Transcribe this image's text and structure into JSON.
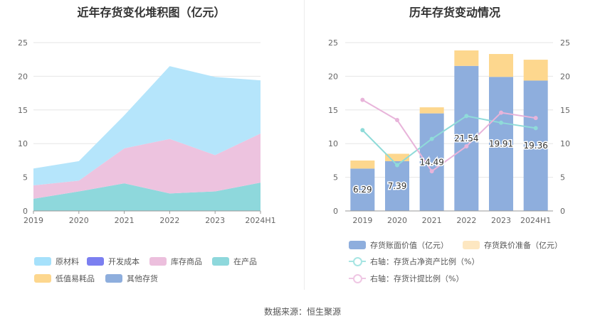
{
  "source_label": "数据来源：恒生聚源",
  "chart_data": [
    {
      "type": "area",
      "stacked": true,
      "title": "近年存货变化堆积图（亿元）",
      "categories": [
        "2019",
        "2020",
        "2021",
        "2022",
        "2023",
        "2024H1"
      ],
      "ylim": [
        0,
        25
      ],
      "yticks": [
        0,
        5,
        10,
        15,
        20,
        25
      ],
      "series": [
        {
          "name": "在产品",
          "color": "#8ed8dc",
          "values": [
            1.8,
            2.9,
            4.1,
            2.6,
            2.9,
            4.2
          ]
        },
        {
          "name": "库存商品",
          "color": "#edc3df",
          "values": [
            2.0,
            1.6,
            5.2,
            8.1,
            5.4,
            7.3
          ]
        },
        {
          "name": "原材料",
          "color": "#b5e5fb",
          "values": [
            2.5,
            2.9,
            4.9,
            10.8,
            11.6,
            7.9
          ]
        },
        {
          "name": "开发成本",
          "color": "#7b7ff0",
          "values": [
            0,
            0,
            0,
            0,
            0,
            0
          ]
        },
        {
          "name": "低值易耗品",
          "color": "#fdd78e",
          "values": [
            0,
            0,
            0,
            0,
            0,
            0
          ]
        },
        {
          "name": "其他存货",
          "color": "#8eaedd",
          "values": [
            0,
            0,
            0,
            0,
            0,
            0
          ]
        }
      ],
      "legend": [
        {
          "name": "原材料",
          "color": "#a6e1fb"
        },
        {
          "name": "开发成本",
          "color": "#7b7ff0"
        },
        {
          "name": "库存商品",
          "color": "#ecbfdd"
        },
        {
          "name": "在产品",
          "color": "#8ed8dc"
        },
        {
          "name": "低值易耗品",
          "color": "#fdd78e"
        },
        {
          "name": "其他存货",
          "color": "#8eaedd"
        }
      ]
    },
    {
      "type": "bar",
      "stacked": true,
      "title": "历年存货变动情况",
      "categories": [
        "2019",
        "2020",
        "2021",
        "2022",
        "2023",
        "2024H1"
      ],
      "ylim": [
        0,
        25
      ],
      "y2lim": [
        0,
        25
      ],
      "yticks": [
        0,
        5,
        10,
        15,
        20,
        25
      ],
      "bar_series": [
        {
          "name": "存货账面价值（亿元）",
          "color": "#8eaedd",
          "values": [
            6.29,
            7.39,
            14.49,
            21.54,
            19.91,
            19.36
          ],
          "labels": [
            "6.29",
            "7.39",
            "14.49",
            "21.54",
            "19.91",
            "19.36"
          ]
        },
        {
          "name": "存货跌价准备（亿元）",
          "color": "#fdd78e",
          "values": [
            1.2,
            1.1,
            0.9,
            2.3,
            3.4,
            3.1
          ]
        }
      ],
      "line_series": [
        {
          "name": "右轴：存货占净资产比例（%）",
          "color": "#8fdbd9",
          "axis": "right",
          "values": [
            12.0,
            6.8,
            10.7,
            14.1,
            13.1,
            12.3
          ]
        },
        {
          "name": "右轴：存货计提比例（%）",
          "color": "#e8b4da",
          "axis": "right",
          "values": [
            16.5,
            13.5,
            5.9,
            9.6,
            14.6,
            13.8
          ]
        }
      ]
    }
  ]
}
